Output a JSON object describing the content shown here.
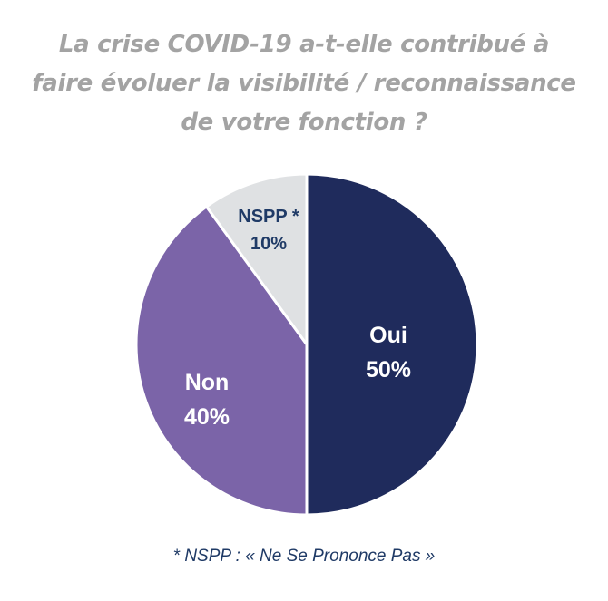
{
  "chart_data": {
    "type": "pie",
    "title_lines": [
      "La crise COVID-19 a-t-elle contribué à",
      "faire évoluer la visibilité / reconnaissance",
      "de votre fonction ?"
    ],
    "slices": [
      {
        "label": "Oui",
        "value": 50,
        "value_label": "50%",
        "color": "#1f2b5c",
        "text_color": "#ffffff"
      },
      {
        "label": "Non",
        "value": 40,
        "value_label": "40%",
        "color": "#7b64a8",
        "text_color": "#ffffff"
      },
      {
        "label": "NSPP *",
        "value": 10,
        "value_label": "10%",
        "color": "#dfe1e3",
        "text_color": "#1f3a66"
      }
    ],
    "footnote": "* NSPP : « Ne Se Prononce Pas »"
  }
}
